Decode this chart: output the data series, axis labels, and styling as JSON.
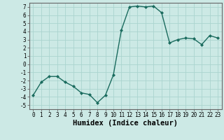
{
  "x": [
    0,
    1,
    2,
    3,
    4,
    5,
    6,
    7,
    8,
    9,
    10,
    11,
    12,
    13,
    14,
    15,
    16,
    17,
    18,
    19,
    20,
    21,
    22,
    23
  ],
  "y": [
    -3.8,
    -2.2,
    -1.5,
    -1.5,
    -2.2,
    -2.7,
    -3.5,
    -3.7,
    -4.7,
    -3.8,
    -1.3,
    4.2,
    7.0,
    7.1,
    7.0,
    7.1,
    6.3,
    2.6,
    3.0,
    3.2,
    3.1,
    2.4,
    3.5,
    3.2
  ],
  "line_color": "#1a6b5e",
  "marker": "D",
  "marker_size": 2.0,
  "bg_color": "#cce9e5",
  "grid_color": "#aad4cf",
  "xlabel": "Humidex (Indice chaleur)",
  "xlim": [
    -0.5,
    23.5
  ],
  "ylim": [
    -5.5,
    7.5
  ],
  "yticks": [
    -5,
    -4,
    -3,
    -2,
    -1,
    0,
    1,
    2,
    3,
    4,
    5,
    6,
    7
  ],
  "ytick_labels": [
    "-5",
    "-4",
    "-3",
    "-2",
    "-1",
    "0",
    "1",
    "2",
    "3",
    "4",
    "5",
    "6",
    "7"
  ],
  "xtick_labels": [
    "0",
    "1",
    "2",
    "3",
    "4",
    "5",
    "6",
    "7",
    "8",
    "9",
    "10",
    "11",
    "12",
    "13",
    "14",
    "15",
    "16",
    "17",
    "18",
    "19",
    "20",
    "21",
    "22",
    "23"
  ],
  "tick_fontsize": 5.5,
  "xlabel_fontsize": 7.5,
  "line_width": 1.0
}
